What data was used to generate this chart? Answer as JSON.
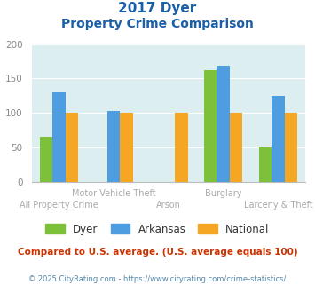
{
  "title_line1": "2017 Dyer",
  "title_line2": "Property Crime Comparison",
  "categories": [
    "All Property Crime",
    "Motor Vehicle Theft",
    "Arson",
    "Burglary",
    "Larceny & Theft"
  ],
  "dyer": [
    65,
    0,
    0,
    162,
    50
  ],
  "arkansas": [
    130,
    102,
    0,
    169,
    124
  ],
  "national": [
    100,
    100,
    100,
    100,
    100
  ],
  "dyer_color": "#7dc13a",
  "arkansas_color": "#4d9de0",
  "national_color": "#f5a623",
  "ylim": [
    0,
    200
  ],
  "yticks": [
    0,
    50,
    100,
    150,
    200
  ],
  "bg_color": "#ddeef0",
  "subtitle_note": "Compared to U.S. average. (U.S. average equals 100)",
  "footer": "© 2025 CityRating.com - https://www.cityrating.com/crime-statistics/",
  "title_color": "#1a5fa8",
  "subtitle_color": "#cc3300",
  "footer_color": "#5588aa"
}
